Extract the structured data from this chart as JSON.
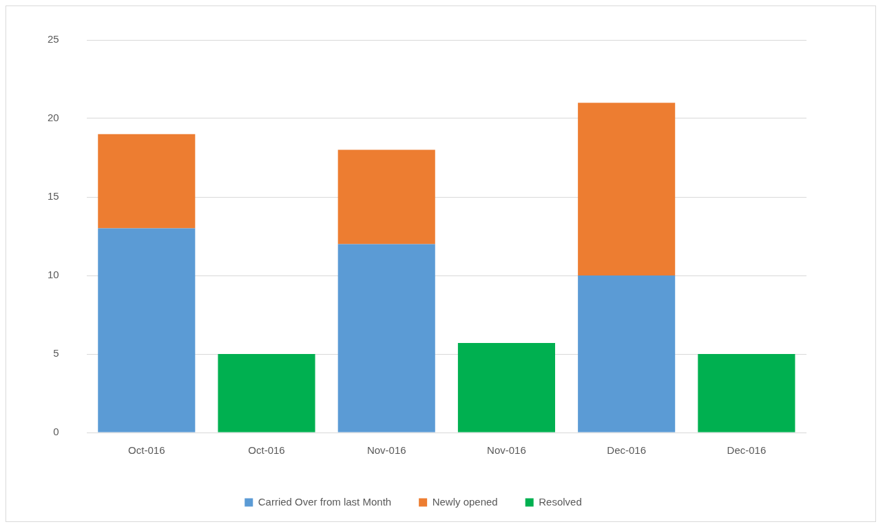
{
  "chart_data": {
    "type": "bar",
    "stacked": true,
    "categories": [
      "Oct-016",
      "Oct-016",
      "Nov-016",
      "Nov-016",
      "Dec-016",
      "Dec-016"
    ],
    "series": [
      {
        "name": "Carried Over from last Month",
        "color": "#5b9bd5",
        "values": [
          13,
          null,
          12,
          null,
          10,
          null
        ]
      },
      {
        "name": "Newly opened",
        "color": "#ed7d31",
        "values": [
          6,
          null,
          6,
          null,
          11,
          null
        ]
      },
      {
        "name": "Resolved",
        "color": "#00b050",
        "values": [
          null,
          5,
          null,
          5.7,
          null,
          5
        ]
      }
    ],
    "ylim": [
      0,
      25
    ],
    "yticks": [
      0,
      5,
      10,
      15,
      20,
      25
    ],
    "grid": "y",
    "legend": "bottom"
  }
}
